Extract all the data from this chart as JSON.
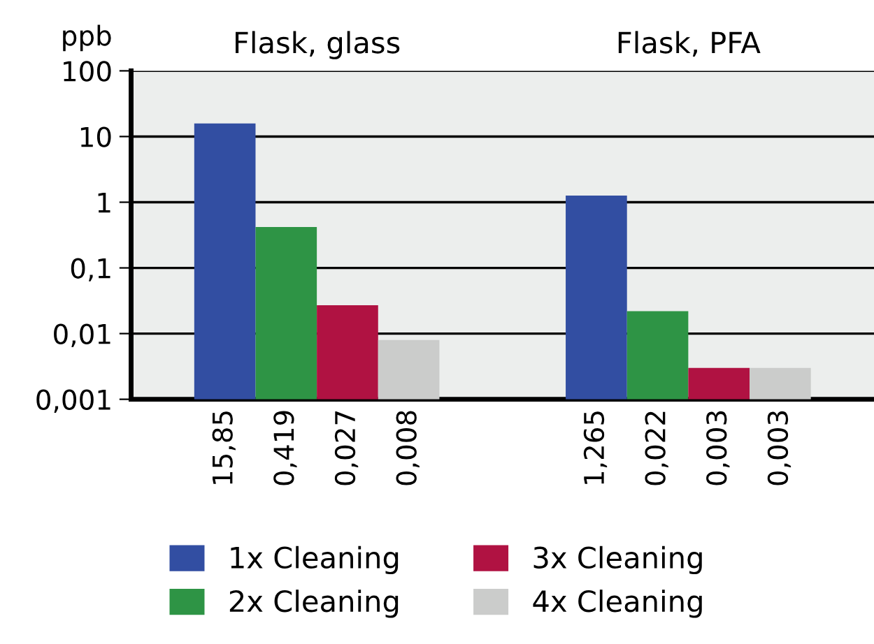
{
  "chart_data": {
    "type": "bar",
    "ylabel": "ppb",
    "categories": [
      "Flask, glass",
      "Flask, PFA"
    ],
    "series": [
      {
        "name": "1x Cleaning",
        "color": "#324ea2",
        "values": [
          15.85,
          1.265
        ],
        "value_labels": [
          "15,85",
          "1,265"
        ]
      },
      {
        "name": "2x Cleaning",
        "color": "#2e9445",
        "values": [
          0.419,
          0.022
        ],
        "value_labels": [
          "0,419",
          "0,022"
        ]
      },
      {
        "name": "3x Cleaning",
        "color": "#b01242",
        "values": [
          0.027,
          0.003
        ],
        "value_labels": [
          "0,027",
          "0,003"
        ]
      },
      {
        "name": "4x Cleaning",
        "color": "#cbcccb",
        "values": [
          0.008,
          0.003
        ],
        "value_labels": [
          "0,008",
          "0,003"
        ]
      }
    ],
    "log": "y",
    "ylim": [
      0.001,
      100
    ],
    "yticks": [
      {
        "value": 0.001,
        "label": "0,001"
      },
      {
        "value": 0.01,
        "label": "0,01"
      },
      {
        "value": 0.1,
        "label": "0,1"
      },
      1,
      10,
      100
    ],
    "grid": "y",
    "legend": "bottom"
  }
}
